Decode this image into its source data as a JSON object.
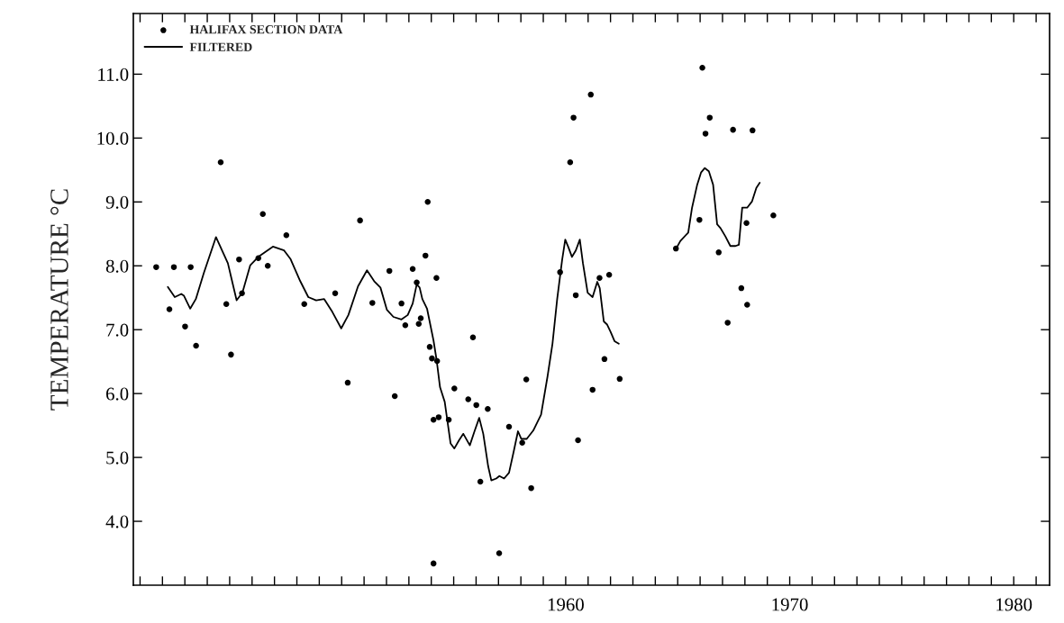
{
  "chart_data": {
    "type": "scatter",
    "ylabel": "TEMPERATURE °C",
    "xlim": [
      1940.7,
      1981.6
    ],
    "ylim": [
      3.0,
      11.95
    ],
    "xticks": [
      {
        "value": 1941,
        "label": null
      },
      {
        "value": 1942,
        "label": null
      },
      {
        "value": 1943,
        "label": null
      },
      {
        "value": 1944,
        "label": null
      },
      {
        "value": 1945,
        "label": null
      },
      {
        "value": 1946,
        "label": null
      },
      {
        "value": 1947,
        "label": null
      },
      {
        "value": 1948,
        "label": null
      },
      {
        "value": 1949,
        "label": null
      },
      {
        "value": 1950,
        "label": null
      },
      {
        "value": 1951,
        "label": null
      },
      {
        "value": 1952,
        "label": null
      },
      {
        "value": 1953,
        "label": null
      },
      {
        "value": 1954,
        "label": null
      },
      {
        "value": 1955,
        "label": null
      },
      {
        "value": 1956,
        "label": null
      },
      {
        "value": 1957,
        "label": null
      },
      {
        "value": 1958,
        "label": null
      },
      {
        "value": 1959,
        "label": null
      },
      1960,
      {
        "value": 1961,
        "label": null
      },
      {
        "value": 1962,
        "label": null
      },
      {
        "value": 1963,
        "label": null
      },
      {
        "value": 1964,
        "label": null
      },
      {
        "value": 1965,
        "label": null
      },
      {
        "value": 1966,
        "label": null
      },
      {
        "value": 1967,
        "label": null
      },
      {
        "value": 1968,
        "label": null
      },
      {
        "value": 1969,
        "label": null
      },
      1970,
      {
        "value": 1971,
        "label": null
      },
      {
        "value": 1972,
        "label": null
      },
      {
        "value": 1973,
        "label": null
      },
      {
        "value": 1974,
        "label": null
      },
      {
        "value": 1975,
        "label": null
      },
      {
        "value": 1976,
        "label": null
      },
      {
        "value": 1977,
        "label": null
      },
      {
        "value": 1978,
        "label": null
      },
      {
        "value": 1979,
        "label": null
      },
      1980,
      {
        "value": 1981,
        "label": null
      }
    ],
    "yticks": [
      {
        "value": 4,
        "label": "4.0"
      },
      {
        "value": 5,
        "label": "5.0"
      },
      {
        "value": 6,
        "label": "6.0"
      },
      {
        "value": 7,
        "label": "7.0"
      },
      {
        "value": 8,
        "label": "8.0"
      },
      {
        "value": 9,
        "label": "9.0"
      },
      {
        "value": 10,
        "label": "10.0"
      },
      {
        "value": 11,
        "label": "11.0"
      }
    ],
    "grid": false,
    "legend": "top left",
    "series": [
      {
        "name": "HALIFAX SECTION DATA",
        "marker": "circle",
        "color": "#000000",
        "x": [
          1941.72,
          1942.31,
          1942.51,
          1943.01,
          1943.26,
          1943.5,
          1944.6,
          1944.85,
          1945.06,
          1945.42,
          1945.55,
          1946.28,
          1946.48,
          1946.7,
          1947.53,
          1948.33,
          1949.71,
          1950.27,
          1950.82,
          1951.37,
          1952.13,
          1952.37,
          1952.67,
          1952.84,
          1953.17,
          1953.35,
          1953.44,
          1953.53,
          1953.74,
          1953.84,
          1953.93,
          1954.03,
          1954.23,
          1954.26,
          1954.1,
          1954.33,
          1954.78,
          1955.03,
          1955.65,
          1955.86,
          1956.01,
          1956.52,
          1956.19,
          1957.03,
          1957.47,
          1958.06,
          1958.24,
          1958.46,
          1959.75,
          1960.2,
          1960.35,
          1960.45,
          1960.55,
          1961.12,
          1954.1,
          1961.51,
          1961.94,
          1961.73,
          1961.2,
          1962.41,
          1966.1,
          1966.43,
          1966.24,
          1967.47,
          1968.34,
          1964.92,
          1965.97,
          1968.07,
          1969.27,
          1966.83,
          1967.84,
          1968.1,
          1967.23
        ],
        "values": [
          7.98,
          7.32,
          7.98,
          7.05,
          7.98,
          6.75,
          9.62,
          7.4,
          6.61,
          8.1,
          7.57,
          8.12,
          8.81,
          8.0,
          8.48,
          7.4,
          7.57,
          6.17,
          8.71,
          7.42,
          7.92,
          5.96,
          7.41,
          7.07,
          7.95,
          7.74,
          7.09,
          7.18,
          8.16,
          9.0,
          6.73,
          6.55,
          7.81,
          6.51,
          5.59,
          5.63,
          5.59,
          6.08,
          5.91,
          6.88,
          5.82,
          5.76,
          4.62,
          3.5,
          5.48,
          5.23,
          6.22,
          4.52,
          7.9,
          9.62,
          10.32,
          7.54,
          5.27,
          10.68,
          3.34,
          7.81,
          7.86,
          6.54,
          6.06,
          6.23,
          11.1,
          10.32,
          10.07,
          10.13,
          10.12,
          8.27,
          8.72,
          8.67,
          8.79,
          8.21,
          7.65,
          7.39,
          7.11
        ]
      },
      {
        "name": "FILTERED",
        "type": "line",
        "marker": "none",
        "line_style": "solid",
        "color": "#000000",
        "x": [
          1942.24,
          1942.55,
          1942.84,
          1942.96,
          1943.24,
          1943.49,
          1943.84,
          1944.39,
          1944.92,
          1945.31,
          1945.57,
          1945.92,
          1946.28,
          1946.93,
          1947.43,
          1947.71,
          1948.15,
          1948.51,
          1948.86,
          1949.22,
          1949.58,
          1949.98,
          1950.3,
          1950.73,
          1951.13,
          1951.45,
          1951.73,
          1952.02,
          1952.31,
          1952.67,
          1952.95,
          1953.17,
          1953.35,
          1953.48,
          1953.6,
          1953.81,
          1954.1,
          1954.24,
          1954.39,
          1954.6,
          1954.74,
          1954.86,
          1955.03,
          1955.24,
          1955.43,
          1955.72,
          1955.94,
          1956.14,
          1956.32,
          1956.54,
          1956.68,
          1956.9,
          1957.04,
          1957.25,
          1957.47,
          1957.69,
          1957.87,
          1958.02,
          1958.26,
          1958.55,
          1958.9,
          1959.19,
          1959.41,
          1959.62,
          1959.84,
          1959.98,
          1960.12,
          1960.28,
          1960.45,
          1960.63,
          1960.77,
          1960.98,
          1961.2,
          1961.41,
          1961.52,
          1961.7,
          1961.85,
          1962.0,
          1962.18,
          1962.37,
          1963.6,
          1964.9,
          1965.12,
          1965.47,
          1965.64,
          1965.87,
          1966.04,
          1966.21,
          1966.39,
          1966.58,
          1966.76,
          1966.91,
          1967.13,
          1967.35,
          1967.58,
          1967.73,
          1967.88,
          1968.1,
          1968.32,
          1968.51,
          1968.66
        ],
        "values": [
          7.67,
          7.51,
          7.56,
          7.53,
          7.33,
          7.48,
          7.88,
          8.45,
          8.04,
          7.46,
          7.58,
          8.01,
          8.14,
          8.3,
          8.24,
          8.11,
          7.76,
          7.51,
          7.46,
          7.48,
          7.28,
          7.02,
          7.23,
          7.68,
          7.93,
          7.76,
          7.66,
          7.31,
          7.2,
          7.16,
          7.23,
          7.41,
          7.71,
          7.66,
          7.48,
          7.33,
          6.83,
          6.52,
          6.1,
          5.87,
          5.52,
          5.22,
          5.14,
          5.27,
          5.37,
          5.19,
          5.42,
          5.62,
          5.37,
          4.86,
          4.64,
          4.67,
          4.71,
          4.67,
          4.76,
          5.11,
          5.41,
          5.29,
          5.29,
          5.42,
          5.67,
          6.27,
          6.78,
          7.48,
          8.09,
          8.41,
          8.29,
          8.14,
          8.24,
          8.41,
          8.04,
          7.58,
          7.51,
          7.75,
          7.65,
          7.13,
          7.08,
          6.97,
          6.82,
          6.78,
          null,
          8.25,
          8.39,
          8.52,
          8.91,
          9.27,
          9.46,
          9.53,
          9.48,
          9.27,
          8.65,
          8.59,
          8.46,
          8.31,
          8.31,
          8.33,
          8.91,
          8.91,
          9.01,
          9.22,
          9.3
        ]
      }
    ]
  }
}
